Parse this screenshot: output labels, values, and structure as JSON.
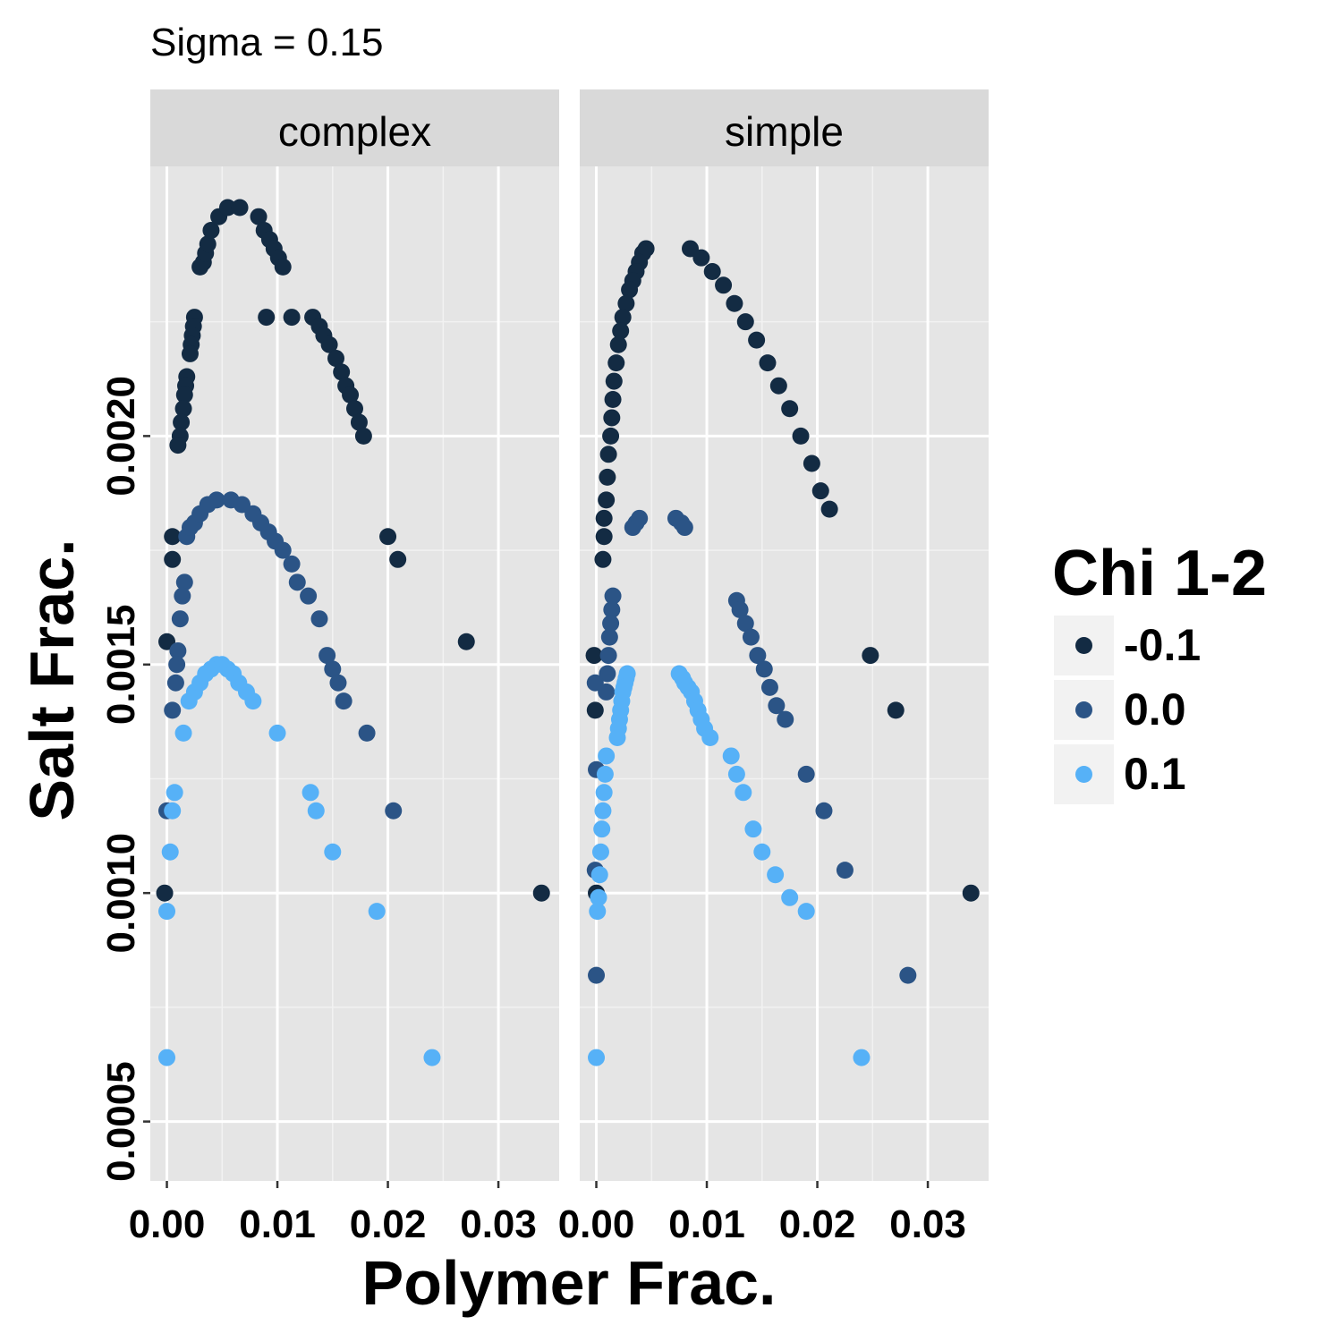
{
  "chart_data": {
    "type": "scatter",
    "title": "Sigma = 0.15",
    "xlabel": "Polymer Frac.",
    "ylabel": "Salt Frac.",
    "xlim": [
      -0.0015,
      0.0355
    ],
    "ylim": [
      0.00037,
      0.00259
    ],
    "x_ticks": [
      0.0,
      0.01,
      0.02,
      0.03
    ],
    "x_tick_labels": [
      "0.00",
      "0.01",
      "0.02",
      "0.03"
    ],
    "y_ticks": [
      0.0005,
      0.001,
      0.0015,
      0.002
    ],
    "y_tick_labels": [
      "0.0005",
      "0.0010",
      "0.0015",
      "0.0020"
    ],
    "grid": true,
    "legend": {
      "title": "Chi 1-2",
      "position": "right",
      "entries": [
        {
          "label": "-0.1",
          "color": "#132B43"
        },
        {
          "label": "0.0",
          "color": "#2B5486"
        },
        {
          "label": "0.1",
          "color": "#56B1F7"
        }
      ]
    },
    "panels": [
      {
        "label": "complex",
        "series": [
          {
            "color": "#132B43",
            "points": [
              [
                0.003,
                0.00237
              ],
              [
                0.0033,
                0.00238
              ],
              [
                0.0035,
                0.0024
              ],
              [
                0.0037,
                0.00242
              ],
              [
                0.004,
                0.00245
              ],
              [
                0.0047,
                0.00248
              ],
              [
                0.0055,
                0.0025
              ],
              [
                0.0066,
                0.0025
              ],
              [
                0.0083,
                0.00248
              ],
              [
                0.0088,
                0.00245
              ],
              [
                0.0093,
                0.00243
              ],
              [
                0.0097,
                0.00241
              ],
              [
                0.0101,
                0.00239
              ],
              [
                0.0105,
                0.00237
              ],
              [
                0.0025,
                0.00226
              ],
              [
                0.0024,
                0.00224
              ],
              [
                0.0023,
                0.00222
              ],
              [
                0.0022,
                0.0022
              ],
              [
                0.0021,
                0.00218
              ],
              [
                0.0018,
                0.00213
              ],
              [
                0.0017,
                0.00211
              ],
              [
                0.0016,
                0.00209
              ],
              [
                0.0015,
                0.00206
              ],
              [
                0.0013,
                0.00203
              ],
              [
                0.0012,
                0.002
              ],
              [
                0.001,
                0.00198
              ],
              [
                0.009,
                0.00226
              ],
              [
                0.0113,
                0.00226
              ],
              [
                0.0132,
                0.00226
              ],
              [
                0.0138,
                0.00224
              ],
              [
                0.0142,
                0.00222
              ],
              [
                0.0147,
                0.0022
              ],
              [
                0.0153,
                0.00217
              ],
              [
                0.0158,
                0.00214
              ],
              [
                0.0162,
                0.00211
              ],
              [
                0.0166,
                0.00209
              ],
              [
                0.017,
                0.00206
              ],
              [
                0.0174,
                0.00203
              ],
              [
                0.0178,
                0.002
              ],
              [
                0.0005,
                0.00178
              ],
              [
                0.0005,
                0.00173
              ],
              [
                0.02,
                0.00178
              ],
              [
                0.0209,
                0.00173
              ],
              [
                0.0,
                0.00155
              ],
              [
                0.0271,
                0.00155
              ],
              [
                -0.0002,
                0.001
              ],
              [
                0.0339,
                0.001
              ]
            ]
          },
          {
            "color": "#2B5486",
            "points": [
              [
                0.0018,
                0.00178
              ],
              [
                0.0021,
                0.0018
              ],
              [
                0.0025,
                0.00181
              ],
              [
                0.003,
                0.00183
              ],
              [
                0.0037,
                0.00185
              ],
              [
                0.0045,
                0.00186
              ],
              [
                0.0058,
                0.00186
              ],
              [
                0.0068,
                0.00185
              ],
              [
                0.0078,
                0.00183
              ],
              [
                0.0085,
                0.00181
              ],
              [
                0.0092,
                0.00179
              ],
              [
                0.0098,
                0.00177
              ],
              [
                0.0105,
                0.00175
              ],
              [
                0.0016,
                0.00168
              ],
              [
                0.0014,
                0.00165
              ],
              [
                0.0012,
                0.0016
              ],
              [
                0.001,
                0.00153
              ],
              [
                0.0009,
                0.0015
              ],
              [
                0.0008,
                0.00146
              ],
              [
                0.0113,
                0.00172
              ],
              [
                0.0118,
                0.00168
              ],
              [
                0.0128,
                0.00165
              ],
              [
                0.0138,
                0.0016
              ],
              [
                0.0145,
                0.00152
              ],
              [
                0.015,
                0.00149
              ],
              [
                0.0155,
                0.00146
              ],
              [
                0.016,
                0.00142
              ],
              [
                0.0005,
                0.0014
              ],
              [
                0.0181,
                0.00135
              ],
              [
                0.0205,
                0.00118
              ],
              [
                0.0,
                0.00118
              ]
            ]
          },
          {
            "color": "#56B1F7",
            "points": [
              [
                0.002,
                0.00142
              ],
              [
                0.0025,
                0.00144
              ],
              [
                0.003,
                0.00146
              ],
              [
                0.0035,
                0.00148
              ],
              [
                0.004,
                0.00149
              ],
              [
                0.0045,
                0.0015
              ],
              [
                0.005,
                0.0015
              ],
              [
                0.0055,
                0.00149
              ],
              [
                0.006,
                0.00148
              ],
              [
                0.0065,
                0.00146
              ],
              [
                0.0072,
                0.00144
              ],
              [
                0.0078,
                0.00142
              ],
              [
                0.0015,
                0.00135
              ],
              [
                0.01,
                0.00135
              ],
              [
                0.0007,
                0.00122
              ],
              [
                0.0005,
                0.00118
              ],
              [
                0.013,
                0.00122
              ],
              [
                0.0135,
                0.00118
              ],
              [
                0.0003,
                0.00109
              ],
              [
                0.015,
                0.00109
              ],
              [
                0.0,
                0.00096
              ],
              [
                0.019,
                0.00096
              ],
              [
                0.0,
                0.00064
              ],
              [
                0.024,
                0.00064
              ]
            ]
          }
        ]
      },
      {
        "label": "simple",
        "series": [
          {
            "color": "#132B43",
            "points": [
              [
                0.0045,
                0.00241
              ],
              [
                0.0042,
                0.0024
              ],
              [
                0.0039,
                0.00238
              ],
              [
                0.0036,
                0.00236
              ],
              [
                0.0033,
                0.00234
              ],
              [
                0.003,
                0.00232
              ],
              [
                0.0027,
                0.00229
              ],
              [
                0.0024,
                0.00226
              ],
              [
                0.0022,
                0.00223
              ],
              [
                0.002,
                0.0022
              ],
              [
                0.0018,
                0.00216
              ],
              [
                0.0016,
                0.00212
              ],
              [
                0.0015,
                0.00208
              ],
              [
                0.0014,
                0.00204
              ],
              [
                0.0013,
                0.002
              ],
              [
                0.0011,
                0.00196
              ],
              [
                0.001,
                0.00191
              ],
              [
                0.0009,
                0.00186
              ],
              [
                0.0007,
                0.00182
              ],
              [
                0.0007,
                0.00178
              ],
              [
                0.0006,
                0.00173
              ],
              [
                0.0085,
                0.00241
              ],
              [
                0.0095,
                0.00239
              ],
              [
                0.0105,
                0.00236
              ],
              [
                0.0115,
                0.00233
              ],
              [
                0.0125,
                0.00229
              ],
              [
                0.0135,
                0.00225
              ],
              [
                0.0145,
                0.00221
              ],
              [
                0.0155,
                0.00216
              ],
              [
                0.0165,
                0.00211
              ],
              [
                0.0175,
                0.00206
              ],
              [
                0.0185,
                0.002
              ],
              [
                0.0195,
                0.00194
              ],
              [
                0.0203,
                0.00188
              ],
              [
                0.0211,
                0.00184
              ],
              [
                -0.0002,
                0.00152
              ],
              [
                0.0248,
                0.00152
              ],
              [
                -0.0001,
                0.0014
              ],
              [
                0.0271,
                0.0014
              ],
              [
                0.0,
                0.001
              ],
              [
                0.0339,
                0.001
              ]
            ]
          },
          {
            "color": "#2B5486",
            "points": [
              [
                0.0033,
                0.0018
              ],
              [
                0.0036,
                0.00181
              ],
              [
                0.0039,
                0.00182
              ],
              [
                0.0072,
                0.00182
              ],
              [
                0.0077,
                0.00181
              ],
              [
                0.008,
                0.0018
              ],
              [
                0.0015,
                0.00165
              ],
              [
                0.0014,
                0.00162
              ],
              [
                0.0013,
                0.00159
              ],
              [
                0.0012,
                0.00156
              ],
              [
                0.0011,
                0.00152
              ],
              [
                0.001,
                0.00148
              ],
              [
                0.0009,
                0.00144
              ],
              [
                0.0127,
                0.00164
              ],
              [
                0.013,
                0.00162
              ],
              [
                0.0135,
                0.00159
              ],
              [
                0.014,
                0.00156
              ],
              [
                0.0146,
                0.00152
              ],
              [
                0.0152,
                0.00149
              ],
              [
                0.0157,
                0.00145
              ],
              [
                0.0163,
                0.00141
              ],
              [
                0.0171,
                0.00138
              ],
              [
                -0.0001,
                0.00146
              ],
              [
                0.0,
                0.00127
              ],
              [
                0.019,
                0.00126
              ],
              [
                0.0206,
                0.00118
              ],
              [
                -0.0001,
                0.00105
              ],
              [
                0.0225,
                0.00105
              ],
              [
                0.0,
                0.00082
              ],
              [
                0.0282,
                0.00082
              ]
            ]
          },
          {
            "color": "#56B1F7",
            "points": [
              [
                0.0028,
                0.00148
              ],
              [
                0.0027,
                0.00147
              ],
              [
                0.0026,
                0.00146
              ],
              [
                0.0025,
                0.00145
              ],
              [
                0.0024,
                0.00144
              ],
              [
                0.0023,
                0.00142
              ],
              [
                0.0022,
                0.0014
              ],
              [
                0.0021,
                0.00138
              ],
              [
                0.002,
                0.00136
              ],
              [
                0.0019,
                0.00134
              ],
              [
                0.0075,
                0.00148
              ],
              [
                0.0078,
                0.00147
              ],
              [
                0.008,
                0.00146
              ],
              [
                0.0083,
                0.00145
              ],
              [
                0.0086,
                0.00144
              ],
              [
                0.0089,
                0.00142
              ],
              [
                0.0092,
                0.0014
              ],
              [
                0.0095,
                0.00138
              ],
              [
                0.0098,
                0.00136
              ],
              [
                0.0103,
                0.00134
              ],
              [
                0.0009,
                0.0013
              ],
              [
                0.0008,
                0.00126
              ],
              [
                0.0007,
                0.00122
              ],
              [
                0.0006,
                0.00118
              ],
              [
                0.0005,
                0.00114
              ],
              [
                0.0004,
                0.00109
              ],
              [
                0.0003,
                0.00104
              ],
              [
                0.0002,
                0.00099
              ],
              [
                0.0001,
                0.00096
              ],
              [
                0.0,
                0.00064
              ],
              [
                0.0122,
                0.0013
              ],
              [
                0.0127,
                0.00126
              ],
              [
                0.0133,
                0.00122
              ],
              [
                0.0142,
                0.00114
              ],
              [
                0.015,
                0.00109
              ],
              [
                0.0162,
                0.00104
              ],
              [
                0.0175,
                0.00099
              ],
              [
                0.019,
                0.00096
              ],
              [
                0.024,
                0.00064
              ]
            ]
          }
        ]
      }
    ]
  }
}
